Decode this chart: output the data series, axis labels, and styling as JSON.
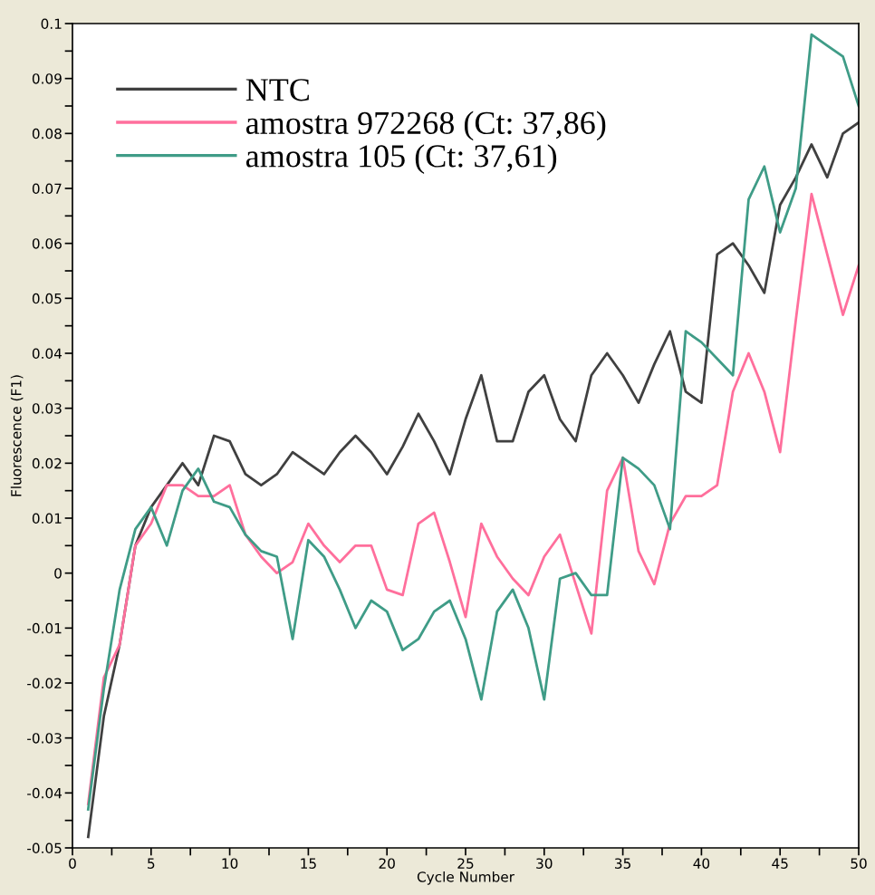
{
  "chart_data": {
    "type": "line",
    "xlabel": "Cycle Number",
    "ylabel": "Fluorescence (F1)",
    "x": [
      1,
      2,
      3,
      4,
      5,
      6,
      7,
      8,
      9,
      10,
      11,
      12,
      13,
      14,
      15,
      16,
      17,
      18,
      19,
      20,
      21,
      22,
      23,
      24,
      25,
      26,
      27,
      28,
      29,
      30,
      31,
      32,
      33,
      34,
      35,
      36,
      37,
      38,
      39,
      40,
      41,
      42,
      43,
      44,
      45,
      46,
      47,
      48,
      49,
      50
    ],
    "series": [
      {
        "name": "NTC",
        "color": "#404040",
        "values": [
          -0.048,
          -0.026,
          -0.013,
          0.005,
          0.012,
          0.016,
          0.02,
          0.016,
          0.025,
          0.024,
          0.018,
          0.016,
          0.018,
          0.022,
          0.02,
          0.018,
          0.022,
          0.025,
          0.022,
          0.018,
          0.023,
          0.029,
          0.024,
          0.018,
          0.028,
          0.036,
          0.024,
          0.024,
          0.033,
          0.036,
          0.028,
          0.024,
          0.036,
          0.04,
          0.036,
          0.031,
          0.038,
          0.044,
          0.033,
          0.031,
          0.058,
          0.06,
          0.056,
          0.051,
          0.067,
          0.072,
          0.078,
          0.072,
          0.08,
          0.082
        ]
      },
      {
        "name": "amostra 972268 (Ct: 37,86)",
        "color": "#ff6f9c",
        "values": [
          -0.042,
          -0.019,
          -0.013,
          0.005,
          0.009,
          0.016,
          0.016,
          0.014,
          0.014,
          0.016,
          0.007,
          0.003,
          0.0,
          0.002,
          0.009,
          0.005,
          0.002,
          0.005,
          0.005,
          -0.003,
          -0.004,
          0.009,
          0.011,
          0.002,
          -0.008,
          0.009,
          0.003,
          -0.001,
          -0.004,
          0.003,
          0.007,
          -0.002,
          -0.011,
          0.015,
          0.021,
          0.004,
          -0.002,
          0.009,
          0.014,
          0.014,
          0.016,
          0.033,
          0.04,
          0.033,
          0.022,
          0.046,
          0.069,
          0.058,
          0.047,
          0.056
        ]
      },
      {
        "name": "amostra 105 (Ct: 37,61)",
        "color": "#3f9c87",
        "values": [
          -0.043,
          -0.021,
          -0.003,
          0.008,
          0.012,
          0.005,
          0.015,
          0.019,
          0.013,
          0.012,
          0.007,
          0.004,
          0.003,
          -0.012,
          0.006,
          0.003,
          -0.003,
          -0.01,
          -0.005,
          -0.007,
          -0.014,
          -0.012,
          -0.007,
          -0.005,
          -0.012,
          -0.023,
          -0.007,
          -0.003,
          -0.01,
          -0.023,
          -0.001,
          0.0,
          -0.004,
          -0.004,
          0.021,
          0.019,
          0.016,
          0.008,
          0.044,
          0.042,
          0.039,
          0.036,
          0.068,
          0.074,
          0.062,
          0.07,
          0.098,
          0.096,
          0.094,
          0.085
        ]
      }
    ],
    "xlim": [
      0,
      50
    ],
    "xticks": [
      0,
      {
        "value": 2.5,
        "label": null
      },
      5,
      {
        "value": 7.5,
        "label": null
      },
      10,
      {
        "value": 12.5,
        "label": null
      },
      15,
      {
        "value": 17.5,
        "label": null
      },
      20,
      {
        "value": 22.5,
        "label": null
      },
      25,
      {
        "value": 27.5,
        "label": null
      },
      30,
      {
        "value": 32.5,
        "label": null
      },
      35,
      {
        "value": 37.5,
        "label": null
      },
      40,
      {
        "value": 42.5,
        "label": null
      },
      45,
      {
        "value": 47.5,
        "label": null
      },
      50
    ],
    "ylim": [
      -0.05,
      0.1
    ],
    "yticks": [
      -0.05,
      {
        "value": -0.045,
        "label": null
      },
      -0.04,
      {
        "value": -0.035,
        "label": null
      },
      -0.03,
      {
        "value": -0.025,
        "label": null
      },
      -0.02,
      {
        "value": -0.015,
        "label": null
      },
      -0.01,
      {
        "value": -0.005,
        "label": null
      },
      0,
      {
        "value": 0.005,
        "label": null
      },
      0.01,
      {
        "value": 0.015,
        "label": null
      },
      0.02,
      {
        "value": 0.025,
        "label": null
      },
      0.03,
      {
        "value": 0.035,
        "label": null
      },
      0.04,
      {
        "value": 0.045,
        "label": null
      },
      0.05,
      {
        "value": 0.055,
        "label": null
      },
      0.06,
      {
        "value": 0.065,
        "label": null
      },
      0.07,
      {
        "value": 0.075,
        "label": null
      },
      0.08,
      {
        "value": 0.085,
        "label": null
      },
      0.09,
      {
        "value": 0.095,
        "label": null
      },
      0.1
    ],
    "legend": "top left",
    "grid": false,
    "marker": "none",
    "line_style": "solid"
  }
}
